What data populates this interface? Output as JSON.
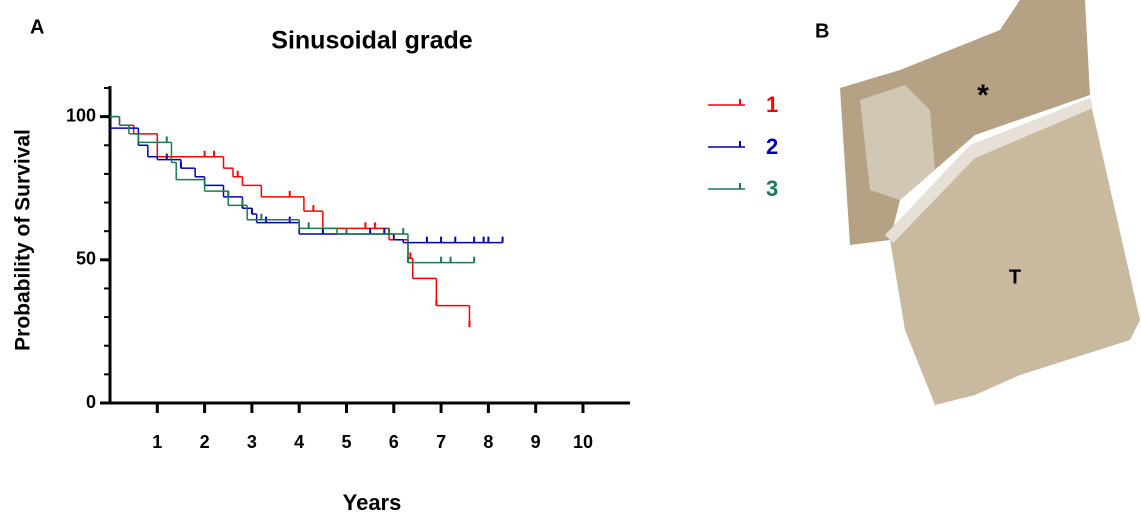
{
  "chart_data": {
    "type": "step",
    "title": "Sinusoidal grade",
    "xlabel": "Years",
    "ylabel": "Probability of Survival",
    "xlim": [
      0,
      11.1
    ],
    "ylim": [
      0,
      110
    ],
    "xticks": [
      1,
      2,
      3,
      4,
      5,
      6,
      7,
      8,
      9,
      10
    ],
    "yticks": [
      0,
      50,
      100
    ],
    "yminorticks": [
      10,
      20,
      30,
      40,
      60,
      70,
      80,
      90,
      110
    ],
    "series": [
      {
        "name": "1",
        "color": "#ff0000",
        "x": [
          0,
          0.2,
          0.5,
          1.0,
          2.2,
          2.4,
          2.6,
          2.8,
          3.2,
          4.1,
          4.5,
          5.9,
          6.3,
          6.4,
          6.9,
          7.6
        ],
        "values": [
          100,
          97,
          94,
          86,
          86,
          82,
          79,
          76,
          72,
          67,
          61,
          57,
          50.5,
          43.5,
          34,
          26.5
        ],
        "censor_x": [
          2.0,
          2.2,
          2.7,
          3.8,
          4.3,
          5.4,
          5.6,
          6.0,
          6.35,
          6.9,
          7.6
        ],
        "censor_values": [
          86,
          86,
          79,
          72,
          67,
          61,
          61,
          57,
          50.5,
          34,
          26.5
        ]
      },
      {
        "name": "2",
        "color": "#0000b4",
        "x": [
          0,
          0.6,
          0.8,
          1.0,
          1.5,
          1.8,
          2.0,
          2.4,
          2.8,
          3.0,
          3.1,
          4.0,
          6.0,
          6.2,
          8.3
        ],
        "values": [
          96,
          90,
          86,
          85,
          82,
          79,
          76,
          72,
          68,
          66,
          63,
          59,
          57,
          56,
          56
        ],
        "censor_x": [
          1.2,
          1.5,
          2.5,
          2.8,
          3.0,
          3.3,
          3.8,
          4.5,
          5.5,
          5.8,
          6.7,
          7.0,
          7.3,
          7.7,
          7.9,
          8.0,
          8.3
        ],
        "censor_values": [
          85,
          82,
          72,
          68,
          66,
          63,
          63,
          59,
          59,
          59,
          56,
          56,
          56,
          56,
          56,
          56,
          56
        ]
      },
      {
        "name": "3",
        "color": "#1a7a50",
        "x": [
          0,
          0.2,
          0.4,
          0.6,
          1.3,
          1.4,
          2.0,
          2.5,
          2.9,
          4.0,
          4.8,
          6.3,
          7.7
        ],
        "values": [
          100,
          97,
          94,
          91,
          84,
          78,
          74,
          69,
          64,
          61,
          59,
          49,
          49
        ],
        "censor_x": [
          1.2,
          2.8,
          3.2,
          4.2,
          5.0,
          5.9,
          6.2,
          6.3,
          7.0,
          7.2,
          7.7
        ],
        "censor_values": [
          91,
          69,
          64,
          61,
          59,
          59,
          59,
          49,
          49,
          49,
          49
        ]
      }
    ]
  },
  "panels": {
    "a": "A",
    "b": "B"
  },
  "image": {
    "labels": [
      "*",
      "T"
    ]
  }
}
